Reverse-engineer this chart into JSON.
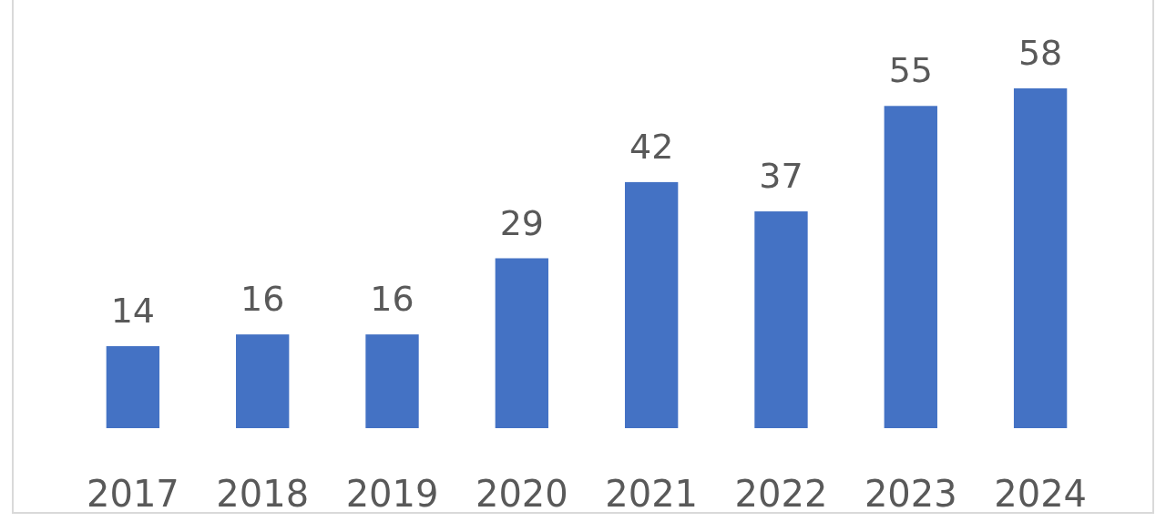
{
  "chart_data": {
    "type": "bar",
    "categories": [
      "2017",
      "2018",
      "2019",
      "2020",
      "2021",
      "2022",
      "2023",
      "2024"
    ],
    "values": [
      14,
      16,
      16,
      29,
      42,
      37,
      55,
      58
    ],
    "color": "#4472c4",
    "data_labels": true
  }
}
